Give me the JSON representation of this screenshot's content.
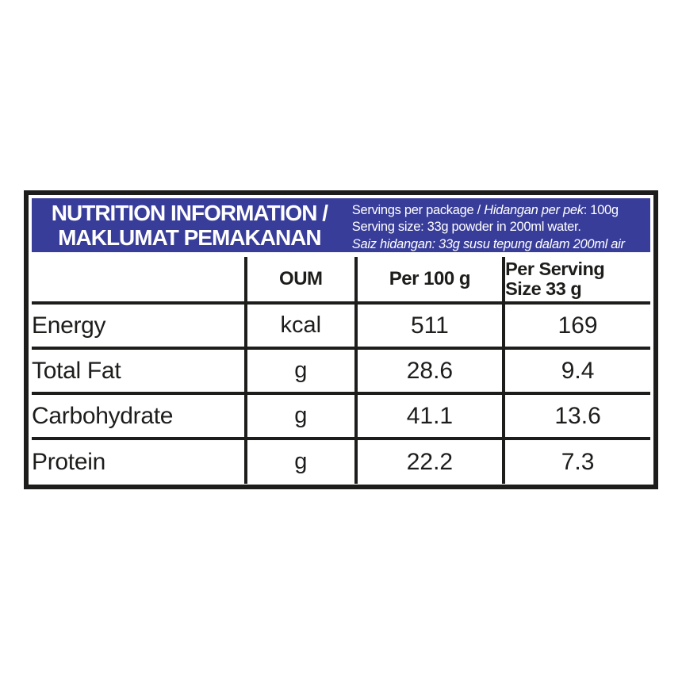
{
  "colors": {
    "band_blue": "#383d99",
    "ink_black": "#1d1d1b",
    "band_text": "#ffffff"
  },
  "header": {
    "title_line1": "NUTRITION INFORMATION /",
    "title_line2": "MAKLUMAT PEMAKANAN",
    "serving_info": {
      "line1_normal": "Servings per package / ",
      "line1_italic": "Hidangan per pek",
      "line1_suffix": ": 100g",
      "line2": "Serving size: 33g powder in 200ml water.",
      "line3_italic": "Saiz hidangan: 33g susu tepung dalam 200ml air"
    }
  },
  "table": {
    "column_headers": {
      "col1": "",
      "col2": "OUM",
      "col3": "Per 100 g",
      "col4": "Per Serving\nSize 33 g"
    },
    "rows": [
      {
        "label": "Energy",
        "unit": "kcal",
        "per_100g": "511",
        "per_serving": "169"
      },
      {
        "label": "Total Fat",
        "unit": "g",
        "per_100g": "28.6",
        "per_serving": "9.4"
      },
      {
        "label": "Carbohydrate",
        "unit": "g",
        "per_100g": "41.1",
        "per_serving": "13.6"
      },
      {
        "label": "Protein",
        "unit": "g",
        "per_100g": "22.2",
        "per_serving": "7.3"
      }
    ]
  }
}
